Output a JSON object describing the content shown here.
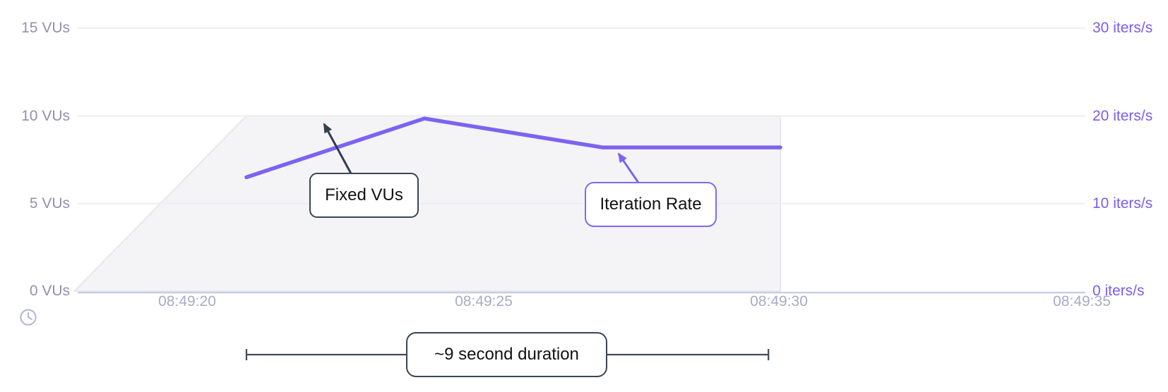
{
  "chart_data": {
    "type": "line",
    "title": "",
    "x_axis": {
      "tick_labels": [
        "08:49:20",
        "08:49:25",
        "08:49:30",
        "08:49:35"
      ],
      "tick_seconds": [
        20,
        25,
        30,
        35
      ],
      "start_seconds": 18.1,
      "end_seconds": 35.1
    },
    "y_left_axis": {
      "unit": "VUs",
      "tick_labels": [
        "15 VUs",
        "10 VUs",
        "5 VUs",
        "0 VUs"
      ],
      "tick_values": [
        15,
        10,
        5,
        0
      ],
      "range": [
        0,
        15
      ]
    },
    "y_right_axis": {
      "unit": "iters/s",
      "tick_labels": [
        "30 iters/s",
        "20 iters/s",
        "10 iters/s",
        "0 iters/s"
      ],
      "tick_values": [
        30,
        20,
        10,
        0
      ],
      "range": [
        0,
        30
      ]
    },
    "series": [
      {
        "name": "Fixed VUs",
        "kind": "area",
        "axis": "left",
        "points": [
          {
            "t": 18.1,
            "v": 0
          },
          {
            "t": 21.0,
            "v": 10
          },
          {
            "t": 30.0,
            "v": 10
          },
          {
            "t": 30.0,
            "v": 0
          }
        ]
      },
      {
        "name": "Iteration Rate",
        "kind": "line",
        "axis": "right",
        "points": [
          {
            "t": 21.0,
            "v": 13.0
          },
          {
            "t": 24.0,
            "v": 19.7
          },
          {
            "t": 27.0,
            "v": 16.4
          },
          {
            "t": 30.0,
            "v": 16.4
          }
        ]
      }
    ],
    "annotations": [
      {
        "id": "fixed-vus",
        "label": "Fixed VUs",
        "style": "dark"
      },
      {
        "id": "iteration-rate",
        "label": "Iteration Rate",
        "style": "purple"
      },
      {
        "id": "duration",
        "label": "~9 second duration",
        "style": "dark",
        "span_seconds": [
          21.0,
          29.8
        ]
      }
    ],
    "legend": "none",
    "grid": "horizontal",
    "colors": {
      "iteration_line": "#7c63f1",
      "right_axis_text": "#7b5cf0",
      "left_axis_text": "#8f92ad",
      "x_axis_text": "#a8abc4",
      "area_fill": "#f4f4f7",
      "area_edge": "#e6e6ee",
      "gridline": "#ededf2",
      "axis_line": "#c6cfe2",
      "annotation_dark": "#3a4454",
      "annotation_purple": "#8269f2",
      "clock_icon": "#b6bad2"
    }
  },
  "icons": {
    "clock": "clock"
  }
}
